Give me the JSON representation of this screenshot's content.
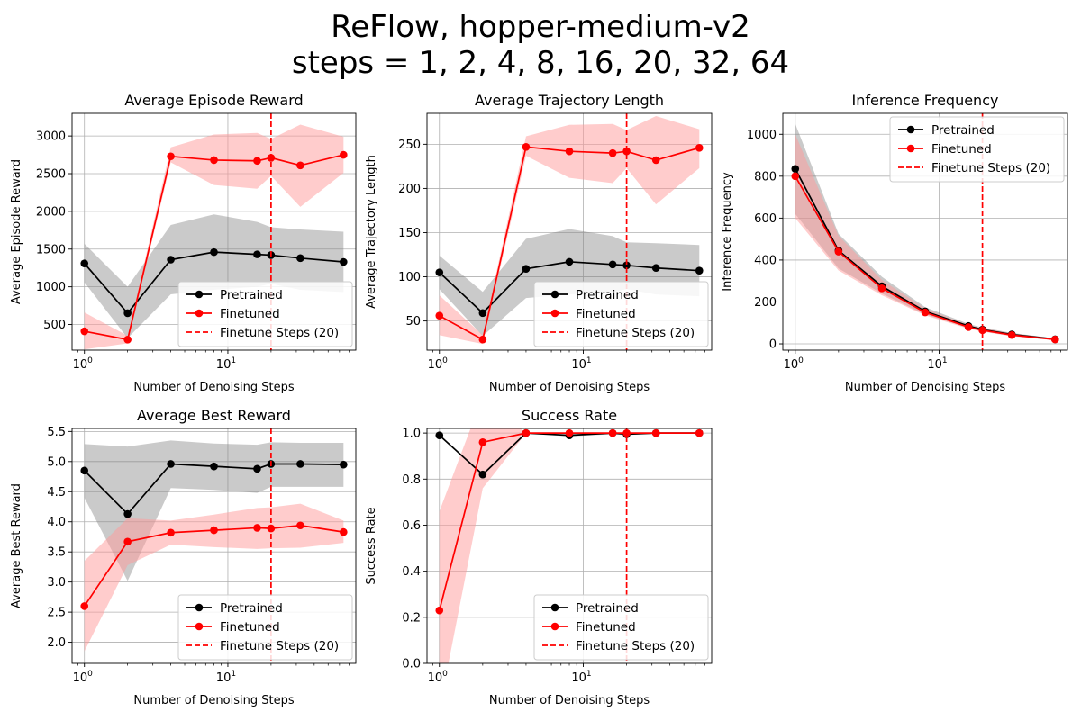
{
  "figure": {
    "title_line1": "ReFlow, hopper-medium-v2",
    "title_line2": "steps = 1, 2, 4, 8, 16, 20, 32, 64"
  },
  "colors": {
    "pretrained": "#000000",
    "finetuned": "#ff0000",
    "pretrained_band": "#808080",
    "finetuned_band": "#ff9999",
    "grid": "#b0b0b0"
  },
  "chart_data": [
    {
      "type": "line",
      "title": "Average Episode Reward",
      "xlabel": "Number of Denoising Steps",
      "ylabel": "Average Episode Reward",
      "xscale": "log",
      "x": [
        1,
        2,
        4,
        8,
        16,
        20,
        32,
        64
      ],
      "xlim": [
        0.82,
        78
      ],
      "ylim": [
        160,
        3300
      ],
      "yticks": [
        500,
        1000,
        1500,
        2000,
        2500,
        3000
      ],
      "ytick_labels": [
        "500",
        "1000",
        "1500",
        "2000",
        "2500",
        "3000"
      ],
      "grid": true,
      "legend_position": "lower-right",
      "series": [
        {
          "name": "Pretrained",
          "values": [
            1310,
            650,
            1360,
            1460,
            1430,
            1420,
            1380,
            1330
          ],
          "lower": [
            1060,
            320,
            900,
            960,
            1000,
            1040,
            960,
            930
          ],
          "upper": [
            1570,
            1000,
            1820,
            1960,
            1860,
            1790,
            1760,
            1730
          ]
        },
        {
          "name": "Finetuned",
          "values": [
            410,
            300,
            2730,
            2680,
            2670,
            2710,
            2610,
            2750
          ],
          "lower": [
            170,
            250,
            2650,
            2350,
            2300,
            2470,
            2060,
            2510
          ],
          "upper": [
            660,
            350,
            2850,
            3020,
            3040,
            2960,
            3150,
            2990
          ]
        }
      ],
      "vline": {
        "x": 20,
        "label": "Finetune Steps (20)"
      }
    },
    {
      "type": "line",
      "title": "Average Trajectory Length",
      "xlabel": "Number of Denoising Steps",
      "ylabel": "Average Trajectory Length",
      "xscale": "log",
      "x": [
        1,
        2,
        4,
        8,
        16,
        20,
        32,
        64
      ],
      "xlim": [
        0.82,
        78
      ],
      "ylim": [
        17,
        285
      ],
      "yticks": [
        50,
        100,
        150,
        200,
        250
      ],
      "ytick_labels": [
        "50",
        "100",
        "150",
        "200",
        "250"
      ],
      "grid": true,
      "legend_position": "lower-right",
      "series": [
        {
          "name": "Pretrained",
          "values": [
            105,
            59,
            109,
            117,
            114,
            113,
            110,
            107
          ],
          "lower": [
            86,
            33,
            76,
            80,
            83,
            86,
            80,
            78
          ],
          "upper": [
            124,
            83,
            143,
            154,
            146,
            139,
            138,
            136
          ]
        },
        {
          "name": "Finetuned",
          "values": [
            56,
            29,
            247,
            242,
            240,
            242,
            232,
            246
          ],
          "lower": [
            34,
            24,
            237,
            212,
            206,
            223,
            182,
            223
          ],
          "upper": [
            79,
            34,
            259,
            272,
            273,
            266,
            282,
            267
          ]
        }
      ],
      "vline": {
        "x": 20,
        "label": "Finetune Steps (20)"
      }
    },
    {
      "type": "line",
      "title": "Inference Frequency",
      "xlabel": "Number of Denoising Steps",
      "ylabel": "Inference Frequency",
      "xscale": "log",
      "x": [
        1,
        2,
        4,
        8,
        16,
        20,
        32,
        64
      ],
      "xlim": [
        0.82,
        78
      ],
      "ylim": [
        -30,
        1100
      ],
      "yticks": [
        0,
        200,
        400,
        600,
        800,
        1000
      ],
      "ytick_labels": [
        "0",
        "200",
        "400",
        "600",
        "800",
        "1000"
      ],
      "grid": true,
      "legend_position": "upper-right",
      "series": [
        {
          "name": "Pretrained",
          "values": [
            835,
            445,
            275,
            155,
            85,
            68,
            45,
            22
          ],
          "lower": [
            620,
            360,
            240,
            140,
            75,
            60,
            38,
            18
          ],
          "upper": [
            1050,
            525,
            320,
            175,
            95,
            78,
            52,
            26
          ]
        },
        {
          "name": "Finetuned",
          "values": [
            800,
            440,
            265,
            150,
            80,
            65,
            42,
            21
          ],
          "lower": [
            600,
            350,
            232,
            136,
            72,
            58,
            36,
            17
          ],
          "upper": [
            1000,
            515,
            305,
            168,
            90,
            74,
            50,
            25
          ]
        }
      ],
      "vline": {
        "x": 20,
        "label": "Finetune Steps (20)"
      }
    },
    {
      "type": "line",
      "title": "Average Best Reward",
      "xlabel": "Number of Denoising Steps",
      "ylabel": "Average Best Reward",
      "xscale": "log",
      "x": [
        1,
        2,
        4,
        8,
        16,
        20,
        32,
        64
      ],
      "xlim": [
        0.82,
        78
      ],
      "ylim": [
        1.65,
        5.55
      ],
      "yticks": [
        2.0,
        2.5,
        3.0,
        3.5,
        4.0,
        4.5,
        5.0,
        5.5
      ],
      "ytick_labels": [
        "2.0",
        "2.5",
        "3.0",
        "3.5",
        "4.0",
        "4.5",
        "5.0",
        "5.5"
      ],
      "grid": true,
      "legend_position": "lower-right",
      "series": [
        {
          "name": "Pretrained",
          "values": [
            4.85,
            4.13,
            4.96,
            4.92,
            4.88,
            4.96,
            4.96,
            4.95
          ],
          "lower": [
            4.4,
            3.02,
            4.56,
            4.53,
            4.48,
            4.58,
            4.58,
            4.58
          ],
          "upper": [
            5.29,
            5.25,
            5.35,
            5.3,
            5.28,
            5.32,
            5.31,
            5.31
          ]
        },
        {
          "name": "Finetuned",
          "values": [
            2.6,
            3.67,
            3.82,
            3.86,
            3.9,
            3.89,
            3.94,
            3.83
          ],
          "lower": [
            1.85,
            3.28,
            3.62,
            3.58,
            3.55,
            3.56,
            3.57,
            3.65
          ],
          "upper": [
            3.35,
            4.06,
            4.02,
            4.12,
            4.23,
            4.24,
            4.3,
            4.02
          ]
        }
      ],
      "vline": {
        "x": 20,
        "label": "Finetune Steps (20)"
      }
    },
    {
      "type": "line",
      "title": "Success Rate",
      "xlabel": "Number of Denoising Steps",
      "ylabel": "Success Rate",
      "xscale": "log",
      "x": [
        1,
        2,
        4,
        8,
        16,
        20,
        32,
        64
      ],
      "xlim": [
        0.82,
        78
      ],
      "ylim": [
        0.0,
        1.02
      ],
      "yticks": [
        0.0,
        0.2,
        0.4,
        0.6,
        0.8,
        1.0
      ],
      "ytick_labels": [
        "0.0",
        "0.2",
        "0.4",
        "0.6",
        "0.8",
        "1.0"
      ],
      "grid": true,
      "legend_position": "lower-right",
      "series": [
        {
          "name": "Pretrained",
          "values": [
            0.99,
            0.82,
            1.0,
            0.99,
            1.0,
            0.995,
            1.0,
            1.0
          ],
          "lower": [
            0.99,
            0.82,
            1.0,
            0.985,
            0.995,
            0.99,
            1.0,
            1.0
          ],
          "upper": [
            0.99,
            0.82,
            1.0,
            0.995,
            1.0,
            1.0,
            1.0,
            1.0
          ]
        },
        {
          "name": "Finetuned",
          "values": [
            0.23,
            0.96,
            1.0,
            1.0,
            1.0,
            1.0,
            1.0,
            1.0
          ],
          "lower": [
            -0.2,
            0.76,
            1.0,
            1.0,
            1.0,
            1.0,
            1.0,
            1.0
          ],
          "upper": [
            0.66,
            1.16,
            1.0,
            1.0,
            1.0,
            1.0,
            1.0,
            1.0
          ]
        }
      ],
      "vline": {
        "x": 20,
        "label": "Finetune Steps (20)"
      }
    }
  ],
  "axis": {
    "xtick_labels": [
      "10",
      "0",
      "10",
      "1"
    ]
  }
}
